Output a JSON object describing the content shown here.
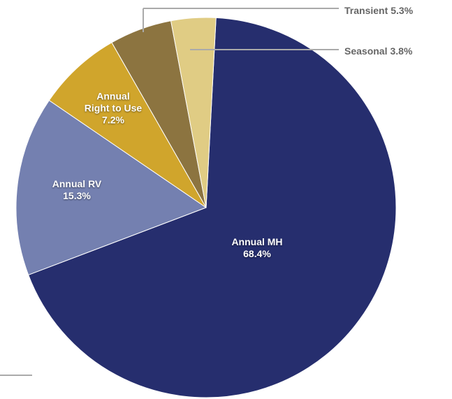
{
  "chart_data": {
    "type": "pie",
    "categories": [
      "Annual MH",
      "Annual RV",
      "Annual Right to Use",
      "Transient",
      "Seasonal"
    ],
    "values": [
      68.4,
      15.3,
      7.2,
      5.3,
      3.8
    ],
    "value_labels": [
      "68.4%",
      "15.3%",
      "7.2%",
      "5.3%",
      "3.8%"
    ],
    "colors": [
      "#262e6e",
      "#7480b0",
      "#d0a52c",
      "#8c7440",
      "#e0cc84"
    ]
  }
}
